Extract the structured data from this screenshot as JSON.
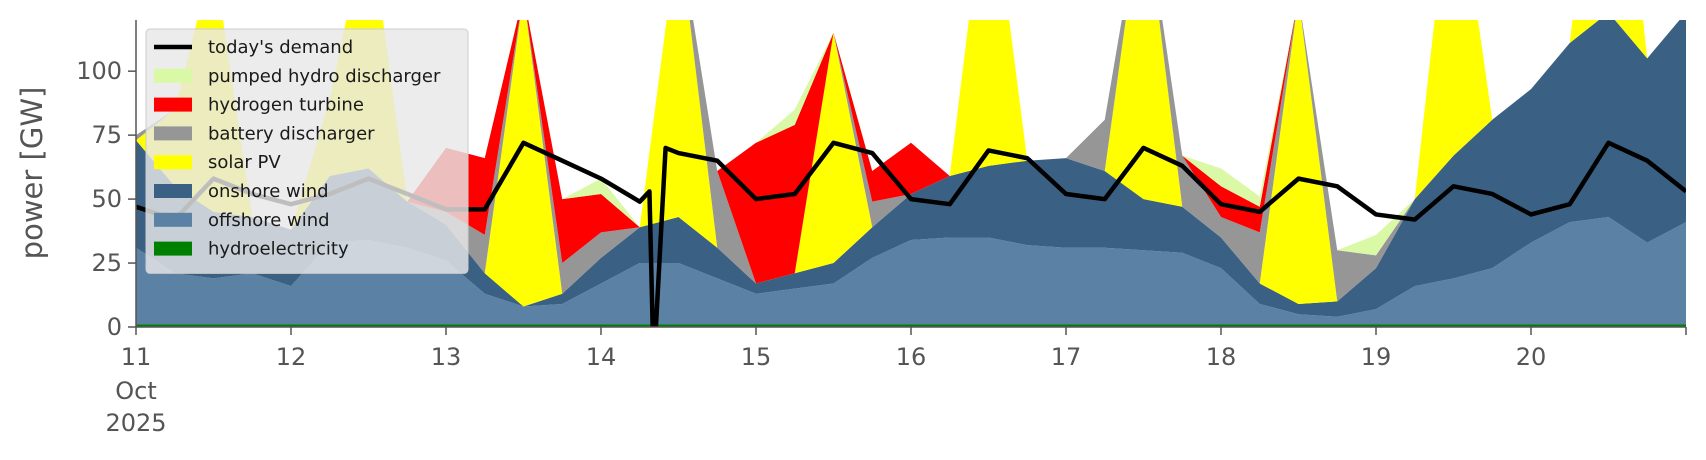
{
  "chart_data": {
    "type": "area",
    "ylabel": "power [GW]",
    "ylim": [
      0,
      120
    ],
    "yticks": [
      0,
      25,
      50,
      75,
      100
    ],
    "xlim": [
      "2025-10-11T00:00",
      "2025-10-21T00:00"
    ],
    "xticks": [
      {
        "x": "2025-10-11",
        "label": "11",
        "sub": [
          "Oct",
          "2025"
        ]
      },
      {
        "x": "2025-10-12",
        "label": "12"
      },
      {
        "x": "2025-10-13",
        "label": "13"
      },
      {
        "x": "2025-10-14",
        "label": "14"
      },
      {
        "x": "2025-10-15",
        "label": "15"
      },
      {
        "x": "2025-10-16",
        "label": "16"
      },
      {
        "x": "2025-10-17",
        "label": "17"
      },
      {
        "x": "2025-10-18",
        "label": "18"
      },
      {
        "x": "2025-10-19",
        "label": "19"
      },
      {
        "x": "2025-10-20",
        "label": "20"
      }
    ],
    "grid": false,
    "legend_position": "upper-left",
    "x": [
      "2025-10-11T00:00",
      "2025-10-11T06:00",
      "2025-10-11T12:00",
      "2025-10-11T18:00",
      "2025-10-12T00:00",
      "2025-10-12T06:00",
      "2025-10-12T12:00",
      "2025-10-12T18:00",
      "2025-10-13T00:00",
      "2025-10-13T06:00",
      "2025-10-13T12:00",
      "2025-10-13T18:00",
      "2025-10-14T00:00",
      "2025-10-14T06:00",
      "2025-10-14T12:00",
      "2025-10-14T18:00",
      "2025-10-15T00:00",
      "2025-10-15T06:00",
      "2025-10-15T12:00",
      "2025-10-15T18:00",
      "2025-10-16T00:00",
      "2025-10-16T06:00",
      "2025-10-16T12:00",
      "2025-10-16T18:00",
      "2025-10-17T00:00",
      "2025-10-17T06:00",
      "2025-10-17T12:00",
      "2025-10-17T18:00",
      "2025-10-18T00:00",
      "2025-10-18T06:00",
      "2025-10-18T12:00",
      "2025-10-18T18:00",
      "2025-10-19T00:00",
      "2025-10-19T06:00",
      "2025-10-19T12:00",
      "2025-10-19T18:00",
      "2025-10-20T00:00",
      "2025-10-20T06:00",
      "2025-10-20T12:00",
      "2025-10-20T18:00",
      "2025-10-21T00:00"
    ],
    "stack_order": [
      "hydroelectricity",
      "offshore wind",
      "onshore wind",
      "solar PV",
      "battery discharger",
      "hydrogen turbine",
      "pumped hydro discharger"
    ],
    "series": [
      {
        "name": "hydroelectricity",
        "color": "#008000",
        "values": [
          1,
          1,
          1,
          1,
          1,
          1,
          1,
          1,
          1,
          1,
          1,
          1,
          1,
          1,
          1,
          1,
          1,
          1,
          1,
          1,
          1,
          1,
          1,
          1,
          1,
          1,
          1,
          1,
          1,
          1,
          1,
          1,
          1,
          1,
          1,
          1,
          1,
          1,
          1,
          1,
          1
        ]
      },
      {
        "name": "offshore wind",
        "color": "#5b82a5",
        "values": [
          30,
          20,
          18,
          20,
          15,
          32,
          33,
          30,
          25,
          12,
          7,
          8,
          16,
          24,
          24,
          18,
          12,
          14,
          16,
          26,
          33,
          34,
          34,
          31,
          30,
          30,
          29,
          28,
          22,
          8,
          4,
          3,
          6,
          15,
          18,
          22,
          32,
          40,
          42,
          32,
          40
        ]
      },
      {
        "name": "onshore wind",
        "color": "#3a6184",
        "values": [
          42,
          34,
          26,
          22,
          22,
          26,
          28,
          18,
          14,
          8,
          0,
          4,
          10,
          14,
          18,
          12,
          4,
          6,
          8,
          12,
          18,
          24,
          28,
          33,
          35,
          30,
          20,
          18,
          12,
          8,
          4,
          6,
          16,
          34,
          48,
          58,
          60,
          70,
          80,
          72,
          82
        ]
      },
      {
        "name": "solar PV",
        "color": "#ffff00",
        "values": [
          0,
          30,
          100,
          0,
          0,
          30,
          100,
          0,
          0,
          0,
          122,
          0,
          0,
          0,
          113,
          0,
          0,
          0,
          90,
          0,
          0,
          0,
          120,
          0,
          0,
          0,
          120,
          0,
          0,
          0,
          120,
          0,
          0,
          0,
          120,
          0,
          0,
          0,
          120,
          0,
          0
        ]
      },
      {
        "name": "battery discharger",
        "color": "#969696",
        "values": [
          2,
          0,
          0,
          0,
          0,
          0,
          0,
          0,
          5,
          15,
          0,
          12,
          10,
          0,
          0,
          30,
          0,
          0,
          0,
          10,
          0,
          0,
          0,
          0,
          0,
          20,
          0,
          20,
          8,
          20,
          0,
          20,
          5,
          0,
          0,
          0,
          0,
          0,
          0,
          0,
          0
        ]
      },
      {
        "name": "hydrogen turbine",
        "color": "#ff0000",
        "values": [
          0,
          0,
          0,
          0,
          0,
          0,
          0,
          0,
          25,
          30,
          0,
          25,
          15,
          0,
          0,
          0,
          55,
          58,
          0,
          12,
          20,
          0,
          0,
          0,
          0,
          0,
          0,
          0,
          12,
          10,
          0,
          0,
          0,
          0,
          0,
          0,
          0,
          0,
          0,
          0,
          0
        ]
      },
      {
        "name": "pumped hydro discharger",
        "color": "#d9f9a6",
        "values": [
          0,
          0,
          0,
          0,
          0,
          0,
          0,
          0,
          0,
          0,
          0,
          0,
          6,
          0,
          0,
          0,
          0,
          6,
          0,
          0,
          0,
          0,
          0,
          0,
          0,
          0,
          0,
          0,
          7,
          4,
          0,
          0,
          8,
          0,
          0,
          0,
          0,
          0,
          0,
          0,
          0
        ]
      }
    ],
    "demand": {
      "name": "today's demand",
      "color": "#000000",
      "x": [
        "2025-10-11T00:00",
        "2025-10-11T06:00",
        "2025-10-11T12:00",
        "2025-10-11T18:00",
        "2025-10-12T00:00",
        "2025-10-12T06:00",
        "2025-10-12T12:00",
        "2025-10-12T18:00",
        "2025-10-13T00:00",
        "2025-10-13T06:00",
        "2025-10-13T12:00",
        "2025-10-13T18:00",
        "2025-10-14T00:00",
        "2025-10-14T06:00",
        "2025-10-14T07:30",
        "2025-10-14T08:00",
        "2025-10-14T08:30",
        "2025-10-14T10:00",
        "2025-10-14T12:00",
        "2025-10-14T18:00",
        "2025-10-15T00:00",
        "2025-10-15T06:00",
        "2025-10-15T12:00",
        "2025-10-15T18:00",
        "2025-10-16T00:00",
        "2025-10-16T06:00",
        "2025-10-16T12:00",
        "2025-10-16T18:00",
        "2025-10-17T00:00",
        "2025-10-17T06:00",
        "2025-10-17T12:00",
        "2025-10-17T18:00",
        "2025-10-18T00:00",
        "2025-10-18T06:00",
        "2025-10-18T12:00",
        "2025-10-18T18:00",
        "2025-10-19T00:00",
        "2025-10-19T06:00",
        "2025-10-19T12:00",
        "2025-10-19T18:00",
        "2025-10-20T00:00",
        "2025-10-20T06:00",
        "2025-10-20T12:00",
        "2025-10-20T18:00",
        "2025-10-21T00:00"
      ],
      "values": [
        47,
        42,
        58,
        52,
        48,
        52,
        58,
        52,
        46,
        46,
        72,
        65,
        58,
        49,
        53,
        0,
        0,
        70,
        68,
        65,
        50,
        52,
        72,
        68,
        50,
        48,
        69,
        66,
        52,
        50,
        70,
        63,
        48,
        45,
        58,
        55,
        44,
        42,
        55,
        52,
        44,
        48,
        72,
        65,
        53
      ]
    },
    "legend": [
      {
        "label": "today's demand",
        "kind": "line",
        "color": "#000000"
      },
      {
        "label": "pumped hydro discharger",
        "kind": "patch",
        "color": "#d9f9a6"
      },
      {
        "label": "hydrogen turbine",
        "kind": "patch",
        "color": "#ff0000"
      },
      {
        "label": "battery discharger",
        "kind": "patch",
        "color": "#969696"
      },
      {
        "label": "solar PV",
        "kind": "patch",
        "color": "#ffff00"
      },
      {
        "label": "onshore wind",
        "kind": "patch",
        "color": "#3a6184"
      },
      {
        "label": "offshore wind",
        "kind": "patch",
        "color": "#5b82a5"
      },
      {
        "label": "hydroelectricity",
        "kind": "patch",
        "color": "#008000"
      }
    ]
  }
}
